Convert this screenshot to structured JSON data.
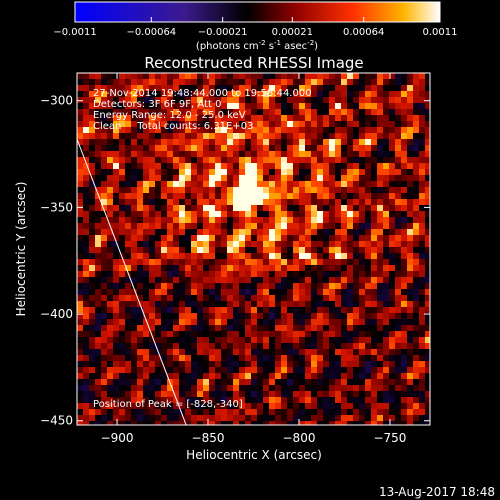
{
  "colorbar": {
    "ticks": [
      "-0.0011",
      "-0.00064",
      "-0.00021",
      "0.00021",
      "0.00064",
      "0.0011"
    ],
    "tick_values": [
      -0.0011,
      -0.00064,
      -0.00021,
      0.00021,
      0.00064,
      0.0011
    ],
    "unit_base": "(photons cm",
    "unit_exp1": "-2",
    "unit_mid": " s",
    "unit_exp2": "-1",
    "unit_end": " asec",
    "unit_exp3": "-2",
    "unit_close": ")"
  },
  "chart_data": {
    "type": "heatmap",
    "title": "Reconstructed RHESSI Image",
    "xlabel": "Heliocentric X (arcsec)",
    "ylabel": "Heliocentric Y (arcsec)",
    "xlim": [
      -922,
      -728
    ],
    "ylim": [
      -452,
      -287
    ],
    "xticks": [
      -900,
      -850,
      -800,
      -750
    ],
    "xtick_labels": [
      "-900",
      "-850",
      "-800",
      "-750"
    ],
    "yticks": [
      -300,
      -350,
      -400,
      -450
    ],
    "ytick_labels": [
      "-300",
      "-350",
      "-400",
      "-450"
    ],
    "info_lines": [
      "27-Nov-2014 19:48:44.000 to 19:58:44.000",
      "Detectors: 3F 6F 9F, Att 0",
      "Energy Range: 12.0 - 25.0 keV",
      "Clean     Total counts: 6.31E+03"
    ],
    "peak_label": "Position of Peak = [-828,-340]",
    "peak": [
      -828,
      -340
    ],
    "limb_line": [
      [
        -922,
        -318
      ],
      [
        -862,
        -452
      ]
    ]
  },
  "footer": {
    "timestamp": "13-Aug-2017 18:48"
  }
}
